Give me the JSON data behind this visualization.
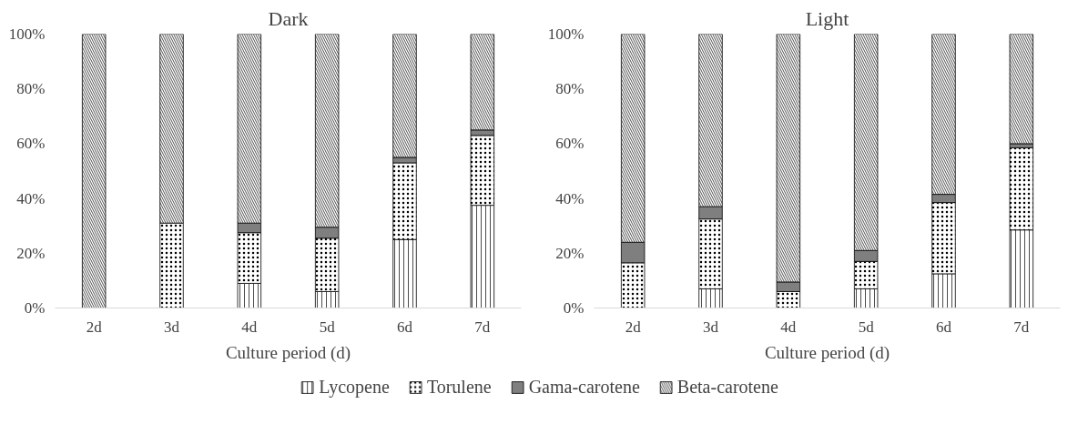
{
  "chart_data": [
    {
      "type": "bar",
      "stacked": true,
      "title": "Dark",
      "xlabel": "Culture period (d)",
      "categories": [
        "2d",
        "3d",
        "4d",
        "5d",
        "6d",
        "7d"
      ],
      "ylim": [
        0,
        100
      ],
      "yticks": [
        {
          "value": 0,
          "label": "0%"
        },
        {
          "value": 20,
          "label": "20%"
        },
        {
          "value": 40,
          "label": "40%"
        },
        {
          "value": 60,
          "label": "60%"
        },
        {
          "value": 80,
          "label": "80%"
        },
        {
          "value": 100,
          "label": "100%"
        }
      ],
      "legend": "bottom",
      "grid": false,
      "series": [
        {
          "name": "Lycopene",
          "color": "#ffffff",
          "values": [
            0,
            0,
            9,
            6,
            25,
            37.5
          ]
        },
        {
          "name": "Torulene",
          "color": "#ffffff",
          "values": [
            0,
            31,
            18.5,
            19.5,
            28,
            25.5
          ]
        },
        {
          "name": "Gama-carotene",
          "color": "#7f7f7f",
          "values": [
            0,
            0,
            3.5,
            4,
            2,
            2
          ]
        },
        {
          "name": "Beta-carotene",
          "color": "#ffffff",
          "values": [
            100,
            69,
            69,
            70.5,
            45,
            35
          ]
        }
      ]
    },
    {
      "type": "bar",
      "stacked": true,
      "title": "Light",
      "xlabel": "Culture period (d)",
      "categories": [
        "2d",
        "3d",
        "4d",
        "5d",
        "6d",
        "7d"
      ],
      "ylim": [
        0,
        100
      ],
      "yticks": [
        {
          "value": 0,
          "label": "0%"
        },
        {
          "value": 20,
          "label": "20%"
        },
        {
          "value": 40,
          "label": "40%"
        },
        {
          "value": 60,
          "label": "60%"
        },
        {
          "value": 80,
          "label": "80%"
        },
        {
          "value": 100,
          "label": "100%"
        }
      ],
      "legend": "bottom",
      "grid": false,
      "series": [
        {
          "name": "Lycopene",
          "color": "#ffffff",
          "values": [
            0,
            7,
            0,
            7,
            12.5,
            28.5
          ]
        },
        {
          "name": "Torulene",
          "color": "#ffffff",
          "values": [
            16.5,
            25.5,
            6,
            10,
            26,
            30
          ]
        },
        {
          "name": "Gama-carotene",
          "color": "#7f7f7f",
          "values": [
            7.5,
            4.5,
            3.5,
            4,
            3,
            1.5
          ]
        },
        {
          "name": "Beta-carotene",
          "color": "#ffffff",
          "values": [
            76,
            63,
            90.5,
            79,
            58.5,
            40
          ]
        }
      ]
    }
  ]
}
